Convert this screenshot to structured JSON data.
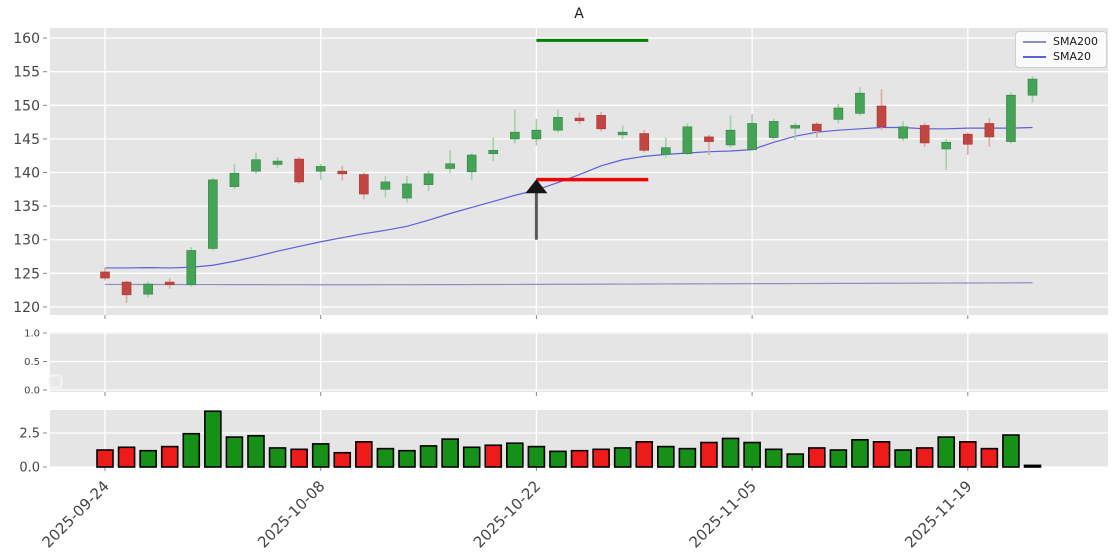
{
  "figure": {
    "title": "A",
    "panel_background": "#e5e5e5",
    "grid_color": "#ffffff",
    "tick_label_color": "#454545"
  },
  "legend": {
    "items": [
      {
        "label": "SMA200",
        "color": "#8d8dc3"
      },
      {
        "label": "SMA20",
        "color": "#5f5fd8"
      }
    ]
  },
  "chart_data": {
    "type": "candlestick",
    "title": "A",
    "num_bars": 44,
    "x_axis": {
      "tick_indices": [
        0,
        10,
        20,
        30,
        40
      ],
      "tick_labels": [
        "2025-09-24",
        "2025-10-08",
        "2025-10-22",
        "2025-11-05",
        "2025-11-19"
      ],
      "label_rotation_deg": 45
    },
    "main_panel": {
      "ylim": [
        118.8,
        161.5
      ],
      "yticks": [
        120,
        125,
        130,
        135,
        140,
        145,
        150,
        155,
        160
      ],
      "grid": true,
      "legend_position": "upper right",
      "ohlc": {
        "open": [
          125.2,
          123.7,
          121.9,
          123.7,
          123.3,
          128.7,
          137.9,
          140.2,
          141.2,
          142.0,
          140.2,
          140.2,
          139.7,
          137.5,
          136.2,
          138.2,
          140.6,
          140.1,
          142.8,
          145.0,
          145.0,
          146.3,
          148.1,
          148.5,
          145.6,
          145.8,
          142.7,
          142.8,
          145.3,
          144.1,
          143.4,
          145.2,
          146.6,
          147.2,
          147.9,
          148.8,
          149.9,
          145.1,
          147.0,
          143.5,
          145.7,
          147.3,
          144.6,
          151.5
        ],
        "high": [
          125.9,
          123.9,
          123.8,
          124.3,
          128.9,
          139.2,
          141.3,
          143.0,
          142.3,
          142.3,
          141.3,
          141.0,
          140.0,
          139.5,
          139.5,
          140.3,
          143.3,
          142.9,
          145.2,
          149.4,
          148.0,
          149.4,
          148.9,
          149.0,
          147.0,
          146.3,
          145.2,
          147.3,
          145.6,
          148.5,
          148.7,
          148.0,
          147.4,
          147.5,
          150.2,
          152.7,
          152.4,
          147.6,
          147.4,
          145.0,
          146.0,
          148.1,
          151.9,
          154.3
        ],
        "low": [
          123.9,
          120.6,
          121.4,
          122.7,
          123.0,
          128.4,
          137.5,
          139.8,
          140.7,
          138.3,
          138.9,
          138.8,
          136.0,
          136.3,
          135.5,
          137.2,
          139.9,
          138.9,
          141.7,
          144.3,
          144.0,
          145.9,
          147.2,
          146.1,
          145.0,
          143.0,
          142.2,
          142.6,
          142.6,
          143.7,
          143.2,
          144.9,
          144.9,
          145.2,
          147.3,
          148.5,
          146.3,
          144.7,
          143.8,
          140.4,
          142.6,
          143.8,
          144.3,
          150.4
        ],
        "close": [
          124.3,
          121.8,
          123.4,
          123.3,
          128.4,
          138.9,
          139.9,
          141.9,
          141.7,
          138.6,
          140.9,
          139.8,
          136.8,
          138.6,
          138.3,
          139.8,
          141.3,
          142.6,
          143.3,
          146.0,
          146.3,
          148.2,
          147.7,
          146.5,
          146.0,
          143.3,
          143.7,
          146.8,
          144.6,
          146.3,
          147.3,
          147.6,
          147.0,
          146.2,
          149.6,
          151.8,
          146.8,
          146.8,
          144.4,
          144.5,
          144.2,
          145.3,
          151.5,
          153.9
        ]
      },
      "series": [
        {
          "name": "SMA200",
          "color": "#8d8dc3",
          "values": [
            123.35,
            123.35,
            123.34,
            123.34,
            123.33,
            123.33,
            123.32,
            123.32,
            123.31,
            123.31,
            123.3,
            123.3,
            123.3,
            123.31,
            123.31,
            123.32,
            123.32,
            123.33,
            123.34,
            123.35,
            123.36,
            123.37,
            123.38,
            123.39,
            123.4,
            123.41,
            123.42,
            123.43,
            123.44,
            123.45,
            123.46,
            123.47,
            123.48,
            123.49,
            123.5,
            123.51,
            123.52,
            123.53,
            123.54,
            123.55,
            123.56,
            123.57,
            123.58,
            123.6
          ]
        },
        {
          "name": "SMA20",
          "color": "#5f5fd8",
          "values": [
            125.8,
            125.8,
            125.85,
            125.8,
            125.9,
            126.2,
            126.8,
            127.5,
            128.3,
            129.0,
            129.7,
            130.3,
            130.9,
            131.4,
            132.0,
            132.9,
            133.9,
            134.8,
            135.7,
            136.6,
            137.4,
            138.5,
            139.7,
            141.0,
            141.9,
            142.4,
            142.7,
            142.9,
            143.1,
            143.2,
            143.4,
            144.5,
            145.4,
            146.0,
            146.3,
            146.5,
            146.7,
            146.7,
            146.5,
            146.5,
            146.6,
            146.6,
            146.6,
            146.7
          ]
        }
      ],
      "colors": {
        "up_body": "#45a355",
        "up_edge": "#338344",
        "up_wick": "#a6d0ab",
        "down_body": "#c14540",
        "down_edge": "#a93832",
        "down_wick": "#dcaba5"
      },
      "annotations": {
        "green_hline": {
          "value": 159.65,
          "from_index": 20,
          "to_index": 25,
          "color": "#008000"
        },
        "red_hline": {
          "value": 138.95,
          "from_index": 20,
          "to_index": 25,
          "color": "#ee0404"
        },
        "up_arrow": {
          "index": 20,
          "tip_value": 139.0,
          "tail_value": 130.0,
          "shaft_color": "#5a5a5a",
          "head_color": "#151515"
        }
      }
    },
    "signal_panel": {
      "ylim": [
        -0.05,
        1.05
      ],
      "yticks": [
        0.0,
        0.5,
        1.0
      ],
      "ytick_labels": [
        "0.0",
        "0.5",
        "1.0"
      ],
      "values": [],
      "empty_legend_box": true
    },
    "volume_panel": {
      "ylim": [
        0,
        4.2
      ],
      "yticks": [
        0.0,
        2.5
      ],
      "ytick_labels": [
        "0.0",
        "2.5"
      ],
      "values": [
        1.25,
        1.45,
        1.2,
        1.5,
        2.45,
        4.1,
        2.2,
        2.3,
        1.4,
        1.3,
        1.7,
        1.05,
        1.85,
        1.35,
        1.2,
        1.55,
        2.05,
        1.45,
        1.6,
        1.75,
        1.5,
        1.15,
        1.2,
        1.3,
        1.4,
        1.85,
        1.5,
        1.35,
        1.8,
        2.1,
        1.8,
        1.3,
        0.95,
        1.4,
        1.25,
        2.0,
        1.85,
        1.25,
        1.4,
        2.2,
        1.85,
        1.35,
        2.35,
        0.12
      ],
      "bar_colors": [
        "down",
        "down",
        "up",
        "down",
        "up",
        "up",
        "up",
        "up",
        "up",
        "down",
        "up",
        "down",
        "down",
        "up",
        "up",
        "up",
        "up",
        "up",
        "down",
        "up",
        "up",
        "up",
        "down",
        "down",
        "up",
        "down",
        "up",
        "up",
        "down",
        "up",
        "up",
        "up",
        "up",
        "down",
        "up",
        "up",
        "down",
        "up",
        "down",
        "up",
        "down",
        "down",
        "up",
        "flat"
      ],
      "colors": {
        "up": "#169016",
        "down": "#ee1b1b",
        "flat": "#111111",
        "edge": "#000000"
      }
    }
  }
}
